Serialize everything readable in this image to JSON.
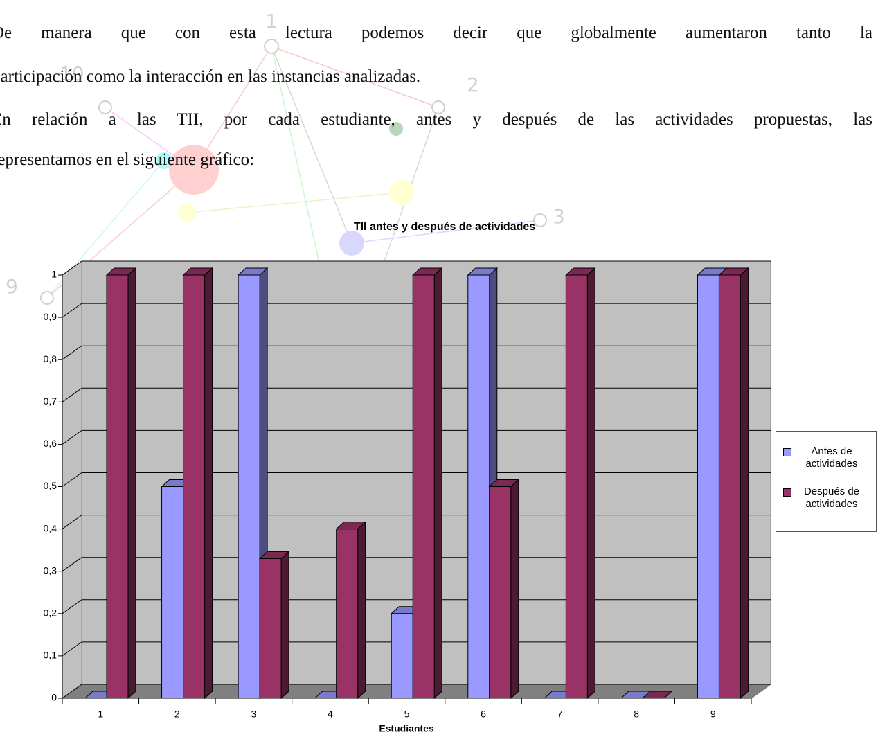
{
  "watermark": {
    "labels": [
      "1",
      "2",
      "3",
      "9",
      "10"
    ]
  },
  "paragraphs": [
    [
      "De manera que con esta lectura podemos decir que globalmente aumentaron tanto la",
      "participación como la interacción en las instancias analizadas."
    ],
    [
      "En relación a las TII, por cada estudiante, antes y después de las actividades propuestas, las",
      "representamos en el siguiente gráfico:"
    ]
  ],
  "chart_data": {
    "type": "bar3d",
    "title": "TII antes y después de actividades",
    "x_label": "Estudiantes",
    "categories": [
      "1",
      "2",
      "3",
      "4",
      "5",
      "6",
      "7",
      "8",
      "9"
    ],
    "series": [
      {
        "name": "Antes de actividades",
        "color": "#9999ff",
        "values": [
          0,
          0.5,
          1,
          0,
          0.2,
          1,
          0,
          0,
          1
        ]
      },
      {
        "name": "Después de actividades",
        "color": "#993366",
        "values": [
          1,
          1,
          0.33,
          0.4,
          1,
          0.5,
          1,
          0,
          1
        ]
      }
    ],
    "ylim": [
      0,
      1
    ],
    "yticks": [
      0,
      {
        "value": 0.1,
        "label": "0,1"
      },
      {
        "value": 0.2,
        "label": "0,2"
      },
      {
        "value": 0.3,
        "label": "0,3"
      },
      {
        "value": 0.4,
        "label": "0,4"
      },
      {
        "value": 0.5,
        "label": "0,5"
      },
      {
        "value": 0.6,
        "label": "0,6"
      },
      {
        "value": 0.7,
        "label": "0,7"
      },
      {
        "value": 0.8,
        "label": "0,8"
      },
      {
        "value": 0.9,
        "label": "0,9"
      },
      1
    ],
    "grid": true,
    "legend": "right"
  }
}
